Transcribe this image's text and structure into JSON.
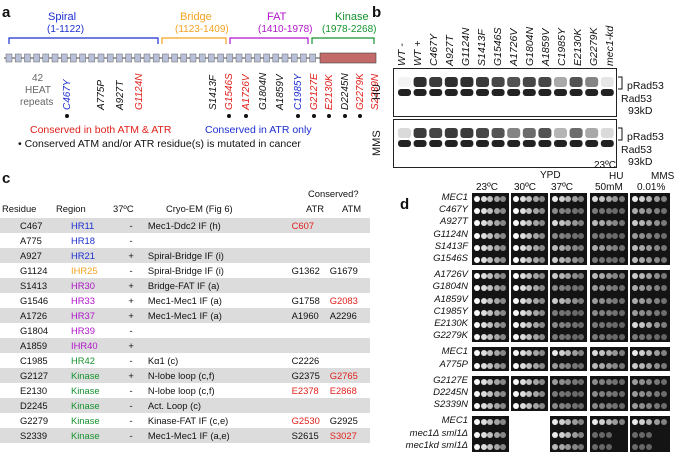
{
  "panel_a": {
    "label": "a",
    "domains": [
      {
        "name": "Spiral",
        "range": "(1-1122)",
        "color": "#1c2fd1"
      },
      {
        "name": "Bridge",
        "range": "(1123-1409)",
        "color": "#f4a321"
      },
      {
        "name": "FAT",
        "range": "(1410-1978)",
        "color": "#b015c9"
      },
      {
        "name": "Kinase",
        "range": "(1978-2268)",
        "color": "#15922e"
      }
    ],
    "heat_note_1": "42",
    "heat_note_2": "HEAT",
    "heat_note_3": "repeats",
    "mutations": [
      {
        "label": "C467Y",
        "color": "#1c2fd1"
      },
      {
        "label": "A775P",
        "color": "#111111"
      },
      {
        "label": "A927T",
        "color": "#111111"
      },
      {
        "label": "G1124N",
        "color": "#e0201b"
      },
      {
        "label": "S1413F",
        "color": "#111111"
      },
      {
        "label": "G1546S",
        "color": "#e0201b"
      },
      {
        "label": "A1726V",
        "color": "#e0201b"
      },
      {
        "label": "G1804N",
        "color": "#111111"
      },
      {
        "label": "A1859V",
        "color": "#111111"
      },
      {
        "label": "C1985Y",
        "color": "#1c2fd1"
      },
      {
        "label": "G2127E",
        "color": "#e0201b"
      },
      {
        "label": "E2130K",
        "color": "#e0201b"
      },
      {
        "label": "D2245N",
        "color": "#111111"
      },
      {
        "label": "G2279K",
        "color": "#e0201b"
      },
      {
        "label": "S2339N",
        "color": "#e0201b"
      }
    ],
    "legend_red": "Conserved in both ATM & ATR",
    "legend_blue": "Conserved in ATR only",
    "legend_dot": "• Conserved ATM and/or ATR residue(s) is mutated in cancer"
  },
  "panel_b": {
    "label": "b",
    "lanes": [
      "WT -",
      "WT +",
      "C467Y",
      "A927T",
      "G1124N",
      "S1413F",
      "G1546S",
      "A1726V",
      "G1804N",
      "A1859V",
      "C1985Y",
      "E2130K",
      "G2279K",
      "mec1-kd"
    ],
    "row_hu": "HU",
    "row_mms": "MMS",
    "band_p": "pRad53",
    "band_r": "Rad53",
    "size": "93kD"
  },
  "panel_c": {
    "label": "c",
    "headers": {
      "residue": "Residue",
      "region": "Region",
      "temp": "37ºC",
      "cryo": "Cryo-EM (Fig 6)",
      "conserved": "Conserved?",
      "atr": "ATR",
      "atm": "ATM"
    },
    "rows": [
      {
        "residue": "C467",
        "region": "HR11",
        "region_color": "#1c2fd1",
        "temp": "-",
        "cryo": "Mec1-Ddc2 IF (h)",
        "atr": "C607",
        "atr_color": "#e0201b",
        "atm": "",
        "atm_color": "#111111"
      },
      {
        "residue": "A775",
        "region": "HR18",
        "region_color": "#1c2fd1",
        "temp": "-",
        "cryo": "",
        "atr": "",
        "atr_color": "#111111",
        "atm": "",
        "atm_color": "#111111"
      },
      {
        "residue": "A927",
        "region": "HR21",
        "region_color": "#1c2fd1",
        "temp": "+",
        "cryo": "Spiral-Bridge IF (i)",
        "atr": "",
        "atr_color": "#111111",
        "atm": "",
        "atm_color": "#111111"
      },
      {
        "residue": "G1124",
        "region": "IHR25",
        "region_color": "#f4a321",
        "temp": "-",
        "cryo": "Spiral-Bridge IF (i)",
        "atr": "G1362",
        "atr_color": "#111111",
        "atm": "G1679",
        "atm_color": "#111111"
      },
      {
        "residue": "S1413",
        "region": "HR30",
        "region_color": "#b015c9",
        "temp": "+",
        "cryo": "Bridge-FAT IF (a)",
        "atr": "",
        "atr_color": "#111111",
        "atm": "",
        "atm_color": "#111111"
      },
      {
        "residue": "G1546",
        "region": "HR33",
        "region_color": "#b015c9",
        "temp": "+",
        "cryo": "Mec1-Mec1 IF (a)",
        "atr": "G1758",
        "atr_color": "#111111",
        "atm": "G2083",
        "atm_color": "#e0201b"
      },
      {
        "residue": "A1726",
        "region": "HR37",
        "region_color": "#b015c9",
        "temp": "+",
        "cryo": "Mec1-Mec1 IF (a)",
        "atr": "A1960",
        "atr_color": "#111111",
        "atm": "A2296",
        "atm_color": "#111111"
      },
      {
        "residue": "G1804",
        "region": "HR39",
        "region_color": "#b015c9",
        "temp": "-",
        "cryo": "",
        "atr": "",
        "atr_color": "#111111",
        "atm": "",
        "atm_color": "#111111"
      },
      {
        "residue": "A1859",
        "region": "IHR40",
        "region_color": "#b015c9",
        "temp": "+",
        "cryo": "",
        "atr": "",
        "atr_color": "#111111",
        "atm": "",
        "atm_color": "#111111"
      },
      {
        "residue": "C1985",
        "region": "HR42",
        "region_color": "#15922e",
        "temp": "-",
        "cryo": "Kα1 (c)",
        "atr": "C2226",
        "atr_color": "#111111",
        "atm": "",
        "atm_color": "#111111"
      },
      {
        "residue": "G2127",
        "region": "Kinase",
        "region_color": "#15922e",
        "temp": "+",
        "cryo": "N-lobe loop (c,f)",
        "atr": "G2375",
        "atr_color": "#111111",
        "atm": "G2765",
        "atm_color": "#e0201b"
      },
      {
        "residue": "E2130",
        "region": "Kinase",
        "region_color": "#15922e",
        "temp": "-",
        "cryo": "N-lobe loop (c,f)",
        "atr": "E2378",
        "atr_color": "#e0201b",
        "atm": "E2868",
        "atm_color": "#e0201b"
      },
      {
        "residue": "D2245",
        "region": "Kinase",
        "region_color": "#15922e",
        "temp": "-",
        "cryo": "Act. Loop (c)",
        "atr": "",
        "atr_color": "#111111",
        "atm": "",
        "atm_color": "#111111"
      },
      {
        "residue": "G2279",
        "region": "Kinase",
        "region_color": "#15922e",
        "temp": "-",
        "cryo": "Kinase-FAT IF (c,e)",
        "atr": "G2530",
        "atr_color": "#e0201b",
        "atm": "G2925",
        "atm_color": "#111111"
      },
      {
        "residue": "S2339",
        "region": "Kinase",
        "region_color": "#15922e",
        "temp": "-",
        "cryo": "Mec1-Mec1 IF (a,e)",
        "atr": "S2615",
        "atr_color": "#111111",
        "atm": "S3027",
        "atm_color": "#e0201b"
      }
    ]
  },
  "panel_d": {
    "label": "d",
    "col_23": "23ºC",
    "col_ypd": "YPD",
    "col_30": "30ºC",
    "col_37": "37ºC",
    "col_23top": "23ºC",
    "col_hu": "HU",
    "col_hu_conc": "50mM",
    "col_mms": "MMS",
    "col_mms_conc": "0.01%",
    "groups": [
      [
        "MEC1",
        "C467Y",
        "A927T",
        "G1124N",
        "S1413F",
        "G1546S"
      ],
      [
        "A1726V",
        "G1804N",
        "A1859V",
        "C1985Y",
        "E2130K",
        "G2279K"
      ],
      [
        "MEC1",
        "A775P"
      ],
      [
        "G2127E",
        "D2245N",
        "S2339N"
      ],
      [
        "MEC1",
        "mec1Δ sml1Δ",
        "mec1kd sml1Δ"
      ]
    ]
  }
}
